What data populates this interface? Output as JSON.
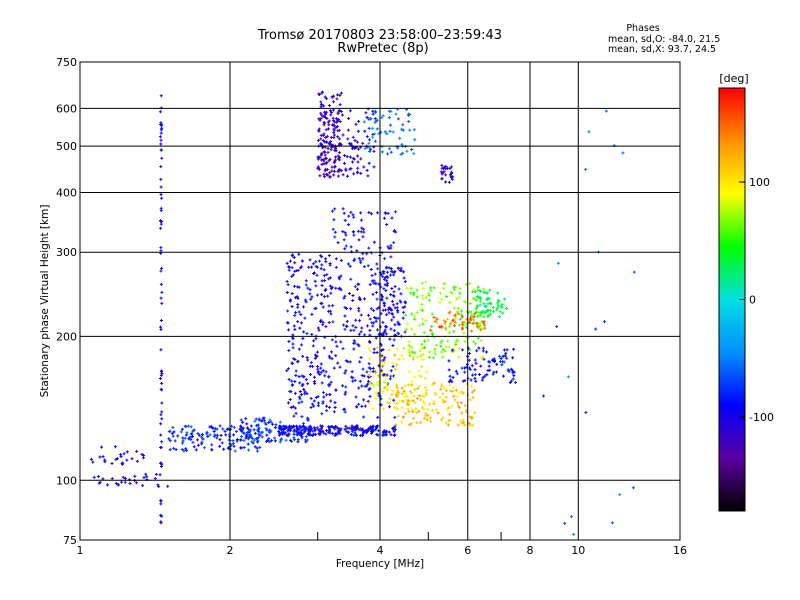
{
  "chart_data": {
    "type": "scatter",
    "title": "Tromsø 20170803 23:58:00–23:59:43",
    "subtitle": "RwPretec (8p)",
    "annotation": {
      "heading": "Phases",
      "line1": "mean, sd,O: -84.0, 21.5",
      "line2": "mean, sd,X:  93.7, 24.5"
    },
    "xlabel": "Frequency [MHz]",
    "ylabel": "Stationary phase Virtual Height [km]",
    "xscale": "log",
    "yscale": "log",
    "xlim": [
      1,
      16
    ],
    "ylim": [
      75,
      750
    ],
    "xticks": [
      1,
      2,
      4,
      6,
      8,
      10,
      16
    ],
    "xtick_labels": [
      "1",
      "2",
      "4",
      "6",
      "8",
      "10",
      "16"
    ],
    "yticks": [
      75,
      100,
      200,
      300,
      400,
      500,
      600,
      750
    ],
    "ytick_labels": [
      "75",
      "100",
      "200",
      "300",
      "400",
      "500",
      "600",
      "750"
    ],
    "grid": true,
    "colorbar": {
      "label": "[deg]",
      "range": [
        -180,
        180
      ],
      "ticks": [
        100,
        0,
        -100
      ],
      "tick_labels": [
        "100",
        "0",
        "-100"
      ],
      "colors": [
        "#000000",
        "#5a00a0",
        "#0000ff",
        "#0090ff",
        "#00e0e0",
        "#00ff00",
        "#ffff00",
        "#ff9000",
        "#ff0000"
      ]
    },
    "clusters": [
      {
        "x": [
          1.05,
          1.5
        ],
        "y": [
          97,
          103
        ],
        "phase": -100,
        "n": 30
      },
      {
        "x": [
          1.05,
          1.35
        ],
        "y": [
          108,
          118
        ],
        "phase": -105,
        "n": 25
      },
      {
        "x": [
          1.45,
          1.46
        ],
        "y": [
          78,
          640
        ],
        "phase": -100,
        "n": 70
      },
      {
        "x": [
          1.5,
          2.3
        ],
        "y": [
          115,
          130
        ],
        "phase": -80,
        "n": 140
      },
      {
        "x": [
          2.1,
          2.9
        ],
        "y": [
          120,
          135
        ],
        "phase": -75,
        "n": 110
      },
      {
        "x": [
          2.5,
          4.3
        ],
        "y": [
          124,
          130
        ],
        "phase": -95,
        "n": 220
      },
      {
        "x": [
          2.6,
          3.2
        ],
        "y": [
          135,
          300
        ],
        "phase": -95,
        "n": 240
      },
      {
        "x": [
          3.0,
          3.35
        ],
        "y": [
          430,
          650
        ],
        "phase": -115,
        "n": 170
      },
      {
        "x": [
          3.3,
          3.9
        ],
        "y": [
          430,
          600
        ],
        "phase": -105,
        "n": 70
      },
      {
        "x": [
          3.2,
          4.3
        ],
        "y": [
          135,
          370
        ],
        "phase": -95,
        "n": 300
      },
      {
        "x": [
          3.7,
          4.7
        ],
        "y": [
          480,
          600
        ],
        "phase": -55,
        "n": 60
      },
      {
        "x": [
          4.0,
          4.5
        ],
        "y": [
          200,
          280
        ],
        "phase": -95,
        "n": 80
      },
      {
        "x": [
          3.8,
          5.0
        ],
        "y": [
          140,
          190
        ],
        "phase": 95,
        "n": 120
      },
      {
        "x": [
          4.3,
          6.2
        ],
        "y": [
          130,
          160
        ],
        "phase": 115,
        "n": 120
      },
      {
        "x": [
          4.5,
          6.5
        ],
        "y": [
          180,
          260
        ],
        "phase": 65,
        "n": 170
      },
      {
        "x": [
          5.0,
          6.5
        ],
        "y": [
          205,
          225
        ],
        "phase": 145,
        "n": 45
      },
      {
        "x": [
          6.2,
          7.2
        ],
        "y": [
          220,
          250
        ],
        "phase": 30,
        "n": 60
      },
      {
        "x": [
          5.3,
          5.6
        ],
        "y": [
          420,
          460
        ],
        "phase": -110,
        "n": 25
      },
      {
        "x": [
          5.5,
          7.5
        ],
        "y": [
          160,
          190
        ],
        "phase": -90,
        "n": 90
      },
      {
        "x": [
          8.5,
          13
        ],
        "y": [
          75,
          600
        ],
        "phase": -60,
        "n": 20
      }
    ]
  }
}
